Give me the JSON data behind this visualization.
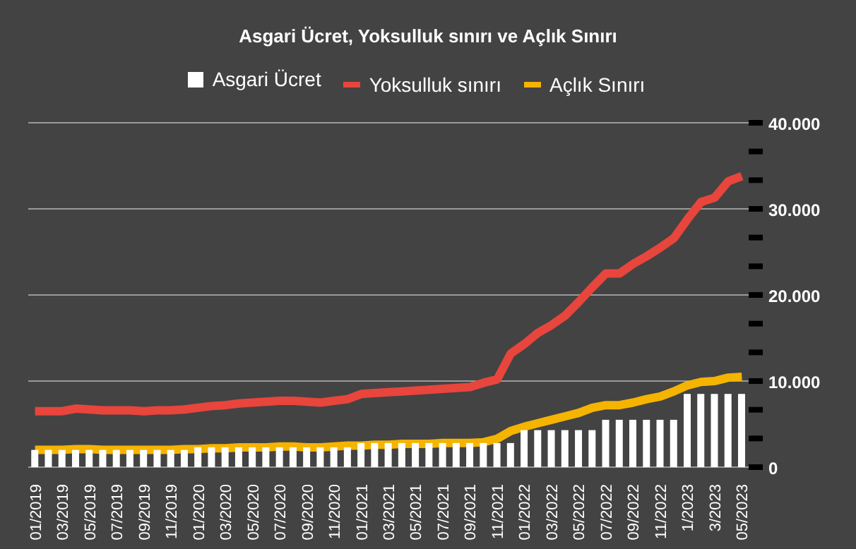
{
  "chart_data": {
    "type": "bar",
    "title": "Asgari Ücret, Yoksulluk sınırı ve Açlık Sınırı",
    "categories": [
      "01/2019",
      null,
      "03/2019",
      null,
      "05/2019",
      null,
      "07/2019",
      null,
      "09/2019",
      null,
      "11/2019",
      null,
      "01/2020",
      null,
      "03/2020",
      null,
      "05/2020",
      null,
      "07/2020",
      null,
      "09/2020",
      null,
      "11/2020",
      null,
      "01/2021",
      null,
      "03/2021",
      null,
      "05/2021",
      null,
      "07/2021",
      null,
      "09/2021",
      null,
      "11/2021",
      null,
      "01/2022",
      null,
      "03/2022",
      null,
      "05/2022",
      null,
      "07/2022",
      null,
      "09/2022",
      null,
      "11/2022",
      null,
      "1/2023",
      null,
      "3/2023",
      null,
      "05/2023"
    ],
    "series": [
      {
        "name": "Asgari Ücret",
        "color": "#ffffff",
        "values": [
          2000,
          2000,
          2000,
          2000,
          2000,
          2000,
          2000,
          2000,
          2000,
          2000,
          2000,
          2000,
          2300,
          2300,
          2300,
          2300,
          2300,
          2300,
          2300,
          2300,
          2300,
          2300,
          2300,
          2300,
          2800,
          2800,
          2800,
          2800,
          2800,
          2800,
          2800,
          2800,
          2800,
          2800,
          2800,
          2800,
          4300,
          4300,
          4300,
          4300,
          4300,
          4300,
          5500,
          5500,
          5500,
          5500,
          5500,
          5500,
          8500,
          8500,
          8500,
          8500,
          8500
        ]
      },
      {
        "name": "Yoksulluk sınırı",
        "type": "line",
        "color": "#e8453c",
        "values": [
          6500,
          6500,
          6500,
          6800,
          6700,
          6600,
          6600,
          6600,
          6500,
          6600,
          6600,
          6700,
          6900,
          7100,
          7200,
          7400,
          7500,
          7600,
          7700,
          7700,
          7600,
          7500,
          7700,
          7900,
          8500,
          8600,
          8700,
          8800,
          8900,
          9000,
          9100,
          9200,
          9300,
          9800,
          10200,
          13200,
          14300,
          15600,
          16500,
          17600,
          19200,
          20900,
          22500,
          22500,
          23600,
          24500,
          25500,
          26600,
          28800,
          30800,
          31300,
          33200,
          33800
        ]
      },
      {
        "name": "Açlık Sınırı",
        "type": "line",
        "color": "#f5b400",
        "values": [
          2000,
          2000,
          2000,
          2100,
          2100,
          2000,
          2000,
          2000,
          2000,
          2000,
          2000,
          2100,
          2100,
          2200,
          2200,
          2300,
          2300,
          2300,
          2400,
          2400,
          2300,
          2300,
          2400,
          2500,
          2500,
          2600,
          2600,
          2700,
          2700,
          2700,
          2800,
          2800,
          2800,
          2900,
          3300,
          4200,
          4700,
          5100,
          5500,
          5900,
          6300,
          6900,
          7200,
          7200,
          7500,
          7900,
          8200,
          8800,
          9500,
          9900,
          10000,
          10400,
          10500
        ]
      }
    ],
    "ylim": [
      0,
      40000
    ],
    "yticks": [
      {
        "value": 0,
        "label": "0"
      },
      {
        "value": 3333,
        "label": null
      },
      {
        "value": 6667,
        "label": null
      },
      {
        "value": 10000,
        "label": "10.000"
      },
      {
        "value": 13333,
        "label": null
      },
      {
        "value": 16667,
        "label": null
      },
      {
        "value": 20000,
        "label": "20.000"
      },
      {
        "value": 23333,
        "label": null
      },
      {
        "value": 26667,
        "label": null
      },
      {
        "value": 30000,
        "label": "30.000"
      },
      {
        "value": 33333,
        "label": null
      },
      {
        "value": 36667,
        "label": null
      },
      {
        "value": 40000,
        "label": "40.000"
      }
    ],
    "grid": "y",
    "legend": "top"
  }
}
